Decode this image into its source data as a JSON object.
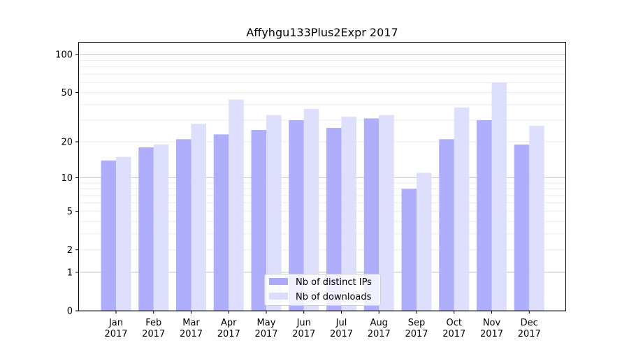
{
  "chart_data": {
    "type": "bar",
    "title": "Affyhgu133Plus2Expr 2017",
    "xlabel": "",
    "ylabel": "",
    "yscale": "log(x+1)",
    "ylim": [
      0,
      120
    ],
    "yticks": [
      0,
      1,
      2,
      5,
      10,
      20,
      50,
      100
    ],
    "categories": [
      "Jan\n2017",
      "Feb\n2017",
      "Mar\n2017",
      "Apr\n2017",
      "May\n2017",
      "Jun\n2017",
      "Jul\n2017",
      "Aug\n2017",
      "Sep\n2017",
      "Oct\n2017",
      "Nov\n2017",
      "Dec\n2017"
    ],
    "series": [
      {
        "name": "Nb of distinct IPs",
        "color": "#aaaafc",
        "values": [
          14,
          18,
          21,
          23,
          25,
          30,
          26,
          31,
          8,
          21,
          30,
          19
        ]
      },
      {
        "name": "Nb of downloads",
        "color": "#dcdcfd",
        "values": [
          15,
          19,
          28,
          44,
          33,
          37,
          32,
          33,
          11,
          38,
          60,
          27
        ]
      }
    ],
    "grid": true,
    "legend": "bottom-center"
  }
}
